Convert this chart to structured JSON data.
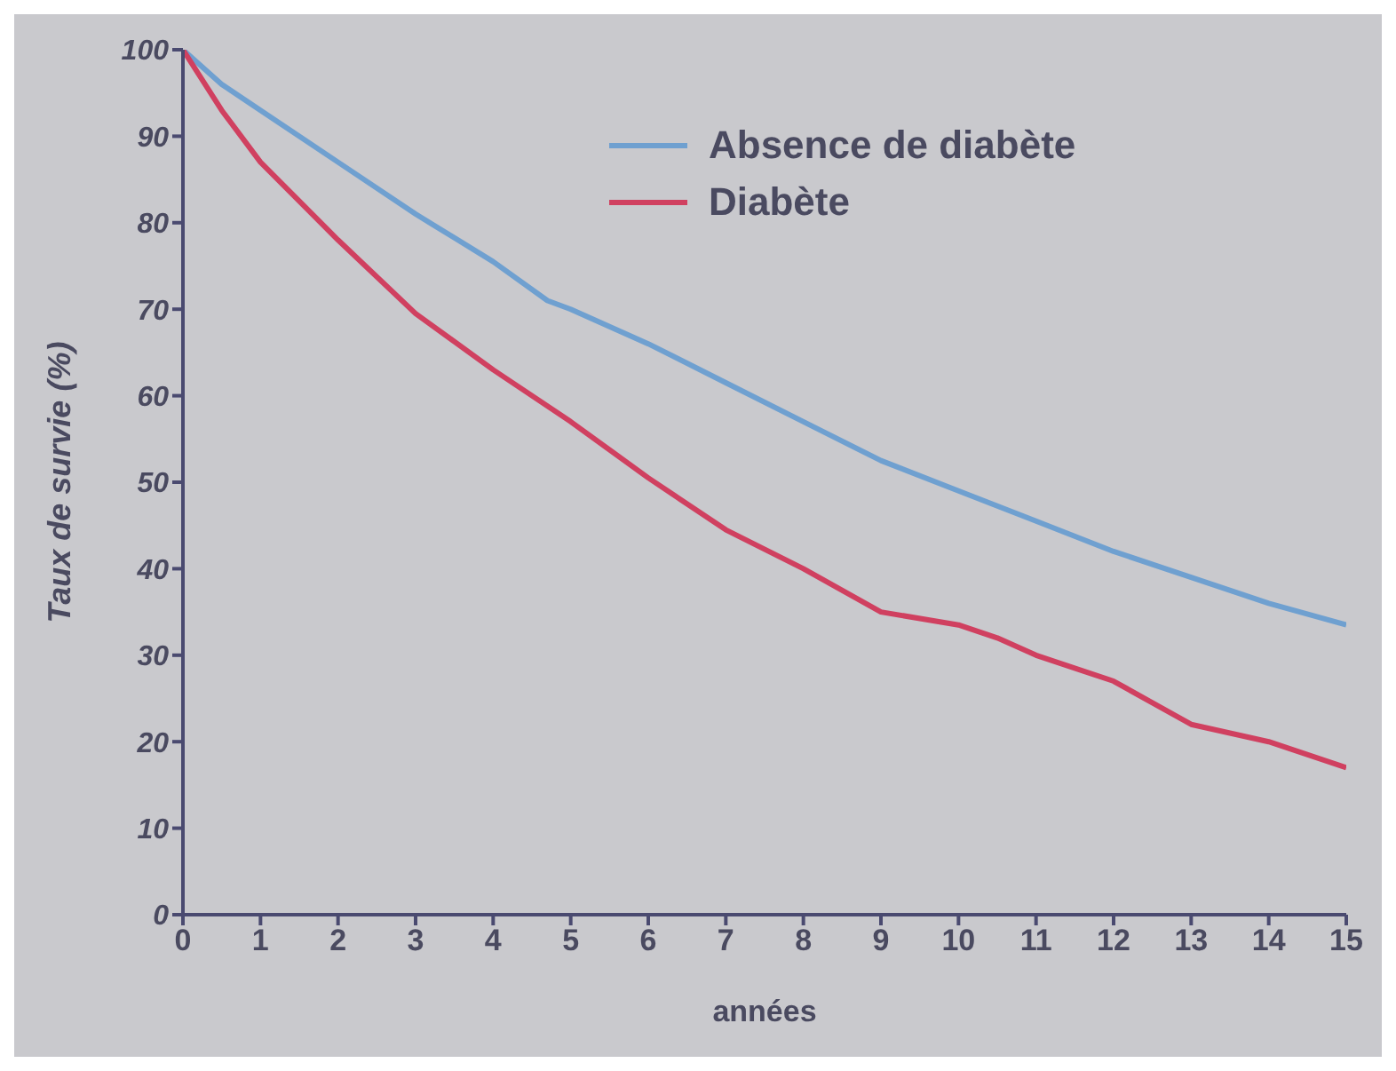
{
  "chart_data": {
    "type": "line",
    "xlabel": "années",
    "ylabel": "Taux de survie (%)",
    "xlim": [
      0,
      15
    ],
    "xticks": [
      0,
      1,
      2,
      3,
      4,
      5,
      6,
      7,
      8,
      9,
      10,
      11,
      12,
      13,
      14,
      15
    ],
    "ylim": [
      0,
      100
    ],
    "yticks": [
      0,
      10,
      20,
      30,
      40,
      50,
      60,
      70,
      80,
      90,
      100
    ],
    "grid": false,
    "legend": "top right",
    "marker": "none",
    "line_style": "solid",
    "series": [
      {
        "name": "Absence de diabète",
        "color": "#6fa0d0",
        "x": [
          0,
          0.5,
          1,
          2,
          3,
          4,
          4.7,
          5,
          6,
          7,
          8,
          9,
          10,
          11,
          12,
          13,
          14,
          15
        ],
        "values": [
          100,
          96,
          93,
          87,
          81,
          75.5,
          71,
          70,
          66,
          61.5,
          57,
          52.5,
          49,
          45.5,
          42,
          39,
          36,
          33.5
        ]
      },
      {
        "name": "Diabète",
        "color": "#d04060",
        "x": [
          0,
          0.5,
          1,
          2,
          3,
          4,
          5,
          6,
          7,
          8,
          9,
          10,
          10.5,
          11,
          12,
          12.5,
          13,
          13.5,
          14,
          15
        ],
        "values": [
          100,
          93,
          87,
          78,
          69.5,
          63,
          57,
          50.5,
          44.5,
          40,
          35,
          33.5,
          32,
          30,
          27,
          24.5,
          22,
          21,
          20,
          17
        ]
      }
    ]
  }
}
